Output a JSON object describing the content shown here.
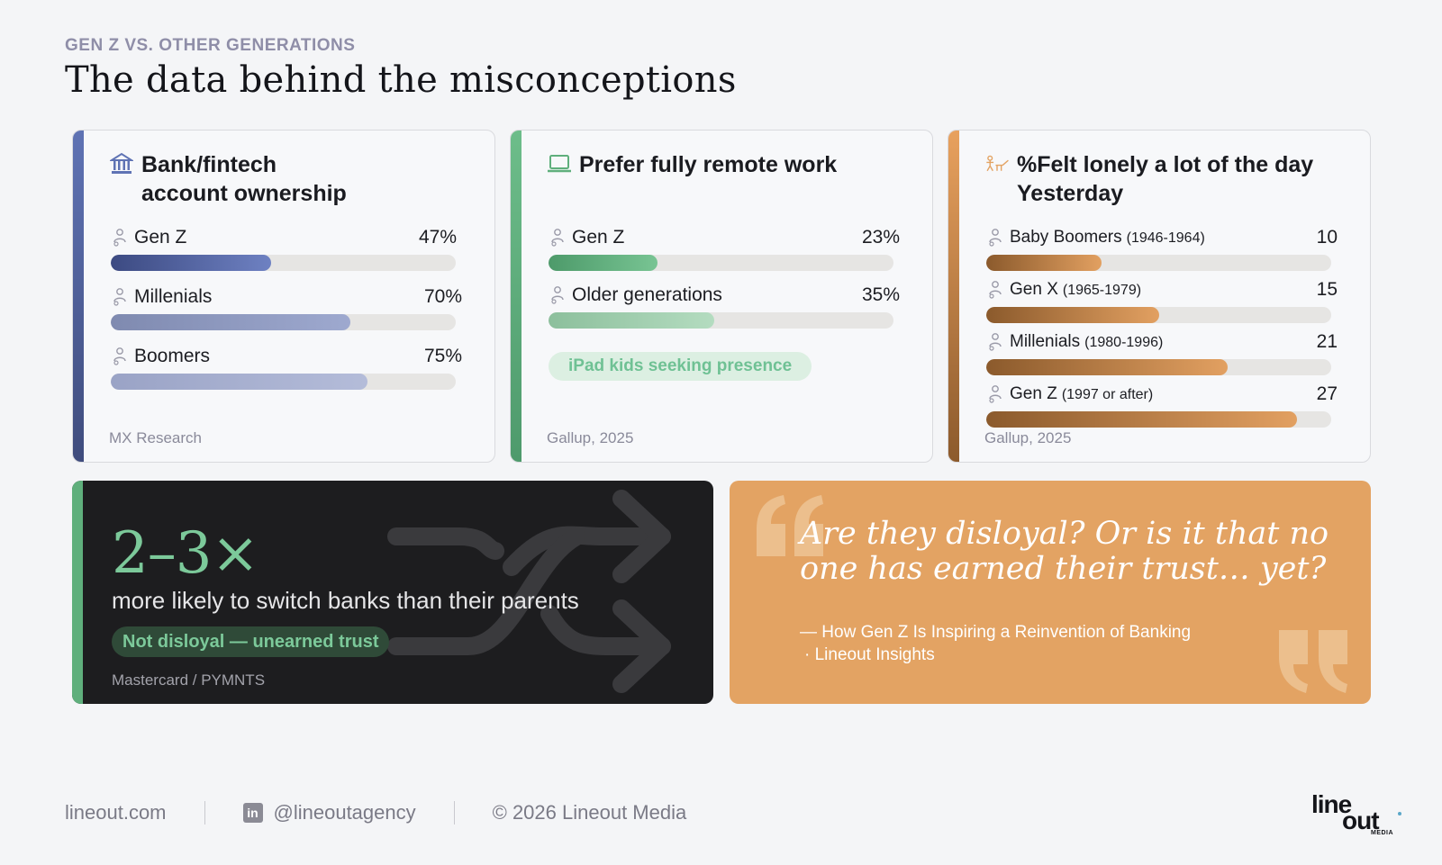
{
  "eyebrow": "GEN Z VS. OTHER GENERATIONS",
  "headline": "The data behind the misconceptions",
  "colors": {
    "blue": "#5f73b4",
    "green": "#5faf7c",
    "orange": "#e3a363",
    "dark": "#1d1d1f"
  },
  "chart_data": [
    {
      "type": "bar",
      "title_line1": "Bank/fintech",
      "title_line2": "account ownership",
      "icon": "bank-icon",
      "categories": [
        "Gen Z",
        "Millenials",
        "Boomers"
      ],
      "values": [
        47,
        70,
        75
      ],
      "value_labels": [
        "47%",
        "70%",
        "75%"
      ],
      "xlim": [
        0,
        100
      ],
      "source": "MX Research"
    },
    {
      "type": "bar",
      "title": "Prefer fully remote work",
      "icon": "laptop-icon",
      "categories": [
        "Gen Z",
        "Older generations"
      ],
      "values": [
        23,
        35
      ],
      "value_labels": [
        "23%",
        "35%"
      ],
      "xlim": [
        0,
        100
      ],
      "annotation": "iPad kids seeking presence",
      "source": "Gallup, 2025"
    },
    {
      "type": "bar",
      "title_line1": "%Felt lonely a lot of the day",
      "title_line2": "Yesterday",
      "icon": "lonely-person-icon",
      "categories": [
        "Baby Boomers",
        "Gen X",
        "Millenials",
        "Gen Z"
      ],
      "years": [
        "(1946-1964)",
        "(1965-1979)",
        "(1980-1996)",
        "(1997 or after)"
      ],
      "values": [
        10,
        15,
        21,
        27
      ],
      "xlim": [
        0,
        30
      ],
      "source": "Gallup, 2025"
    }
  ],
  "stat": {
    "big": "2–3×",
    "desc": "more likely to switch banks than their parents",
    "pill": "Not disloyal — unearned trust",
    "source": "Mastercard / PYMNTS",
    "icon": "shuffle-arrows-icon"
  },
  "quote": {
    "text": "Are they disloyal? Or is it that no one has earned their trust… yet?",
    "attr_line1": "— How Gen Z Is Inspiring a Reinvention of Banking",
    "attr_line2": "· Lineout Insights"
  },
  "footer": {
    "site": "lineout.com",
    "handle": "@lineoutagency",
    "copyright": "© 2026 Lineout Media"
  },
  "logo": {
    "line1": "line",
    "line2": "out",
    "line3": "MEDIA"
  }
}
